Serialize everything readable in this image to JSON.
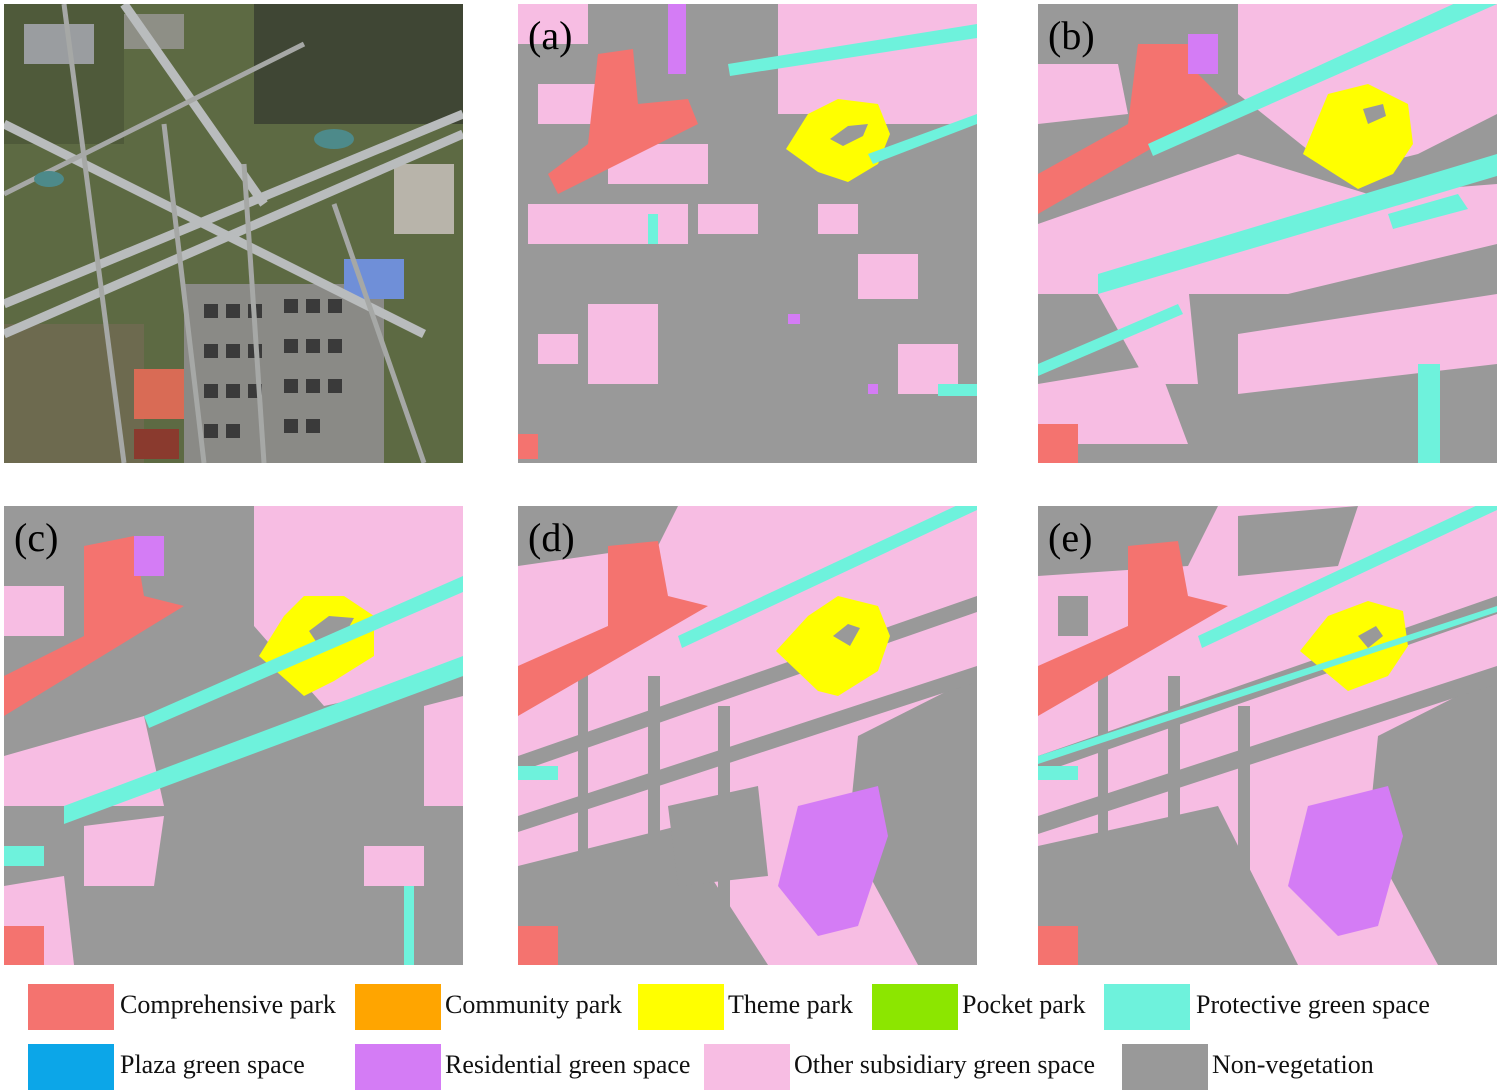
{
  "colors": {
    "comprehensive": "#F4736F",
    "community": "#FFA500",
    "theme": "#FFFF00",
    "pocket": "#8CE600",
    "protective": "#6EF2DC",
    "plaza": "#0CA6E8",
    "residential": "#D47CF5",
    "other": "#F7BDE3",
    "nonveg": "#999999"
  },
  "panels": [
    {
      "id": "sat",
      "label": ""
    },
    {
      "id": "a",
      "label": "(a)"
    },
    {
      "id": "b",
      "label": "(b)"
    },
    {
      "id": "c",
      "label": "(c)"
    },
    {
      "id": "d",
      "label": "(d)"
    },
    {
      "id": "e",
      "label": "(e)"
    }
  ],
  "legend": [
    {
      "label": "Comprehensive park",
      "color": "#F4736F"
    },
    {
      "label": "Community park",
      "color": "#FFA500"
    },
    {
      "label": "Theme park",
      "color": "#FFFF00"
    },
    {
      "label": "Pocket park",
      "color": "#8CE600"
    },
    {
      "label": "Protective green space",
      "color": "#6EF2DC"
    },
    {
      "label": "Plaza green space",
      "color": "#0CA6E8"
    },
    {
      "label": "Residential green space",
      "color": "#D47CF5"
    },
    {
      "label": "Other subsidiary green space",
      "color": "#F7BDE3"
    },
    {
      "label": "Non-vegetation",
      "color": "#999999"
    }
  ]
}
